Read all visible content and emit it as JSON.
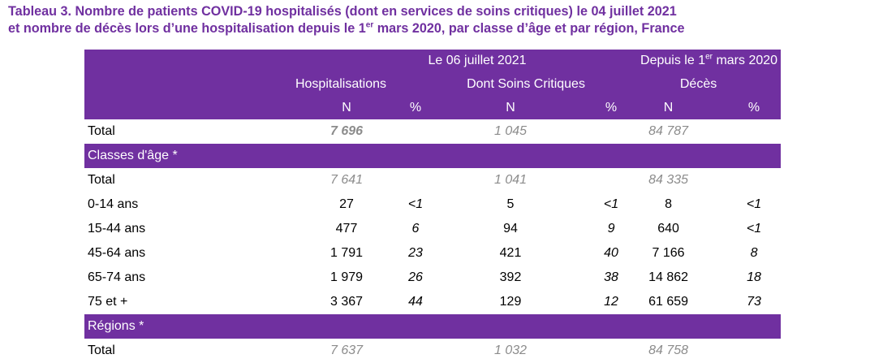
{
  "title": {
    "line1": "Tableau 3. Nombre de patients COVID-19 hospitalisés (dont en services de soins critiques) le 04 juillet 2021",
    "line2_pre": "et nombre de décès lors d’une hospitalisation depuis le 1",
    "line2_sup": "er",
    "line2_post": " mars 2020, par classe d’âge et par région, France"
  },
  "header": {
    "date_label": "Le 06 juillet 2021",
    "since_pre": "Depuis le 1",
    "since_sup": "er",
    "since_post": " mars 2020",
    "hosp": "Hospitalisations",
    "crit": "Dont Soins Critiques",
    "deces": "Décès",
    "n": "N",
    "pct": "%"
  },
  "total_row": {
    "label": "Total",
    "hosp_n": "7 696",
    "crit_n": "1 045",
    "deces_n": "84 787"
  },
  "age_section": "Classes d'âge *",
  "age_total": {
    "label": "Total",
    "hosp_n": "7 641",
    "crit_n": "1 041",
    "deces_n": "84 335"
  },
  "age_rows": [
    {
      "label": "0-14 ans",
      "hosp_n": "27",
      "hosp_p": "<1",
      "crit_n": "5",
      "crit_p": "<1",
      "deces_n": "8",
      "deces_p": "<1"
    },
    {
      "label": "15-44 ans",
      "hosp_n": "477",
      "hosp_p": "6",
      "crit_n": "94",
      "crit_p": "9",
      "deces_n": "640",
      "deces_p": "<1"
    },
    {
      "label": "45-64 ans",
      "hosp_n": "1 791",
      "hosp_p": "23",
      "crit_n": "421",
      "crit_p": "40",
      "deces_n": "7 166",
      "deces_p": "8"
    },
    {
      "label": "65-74 ans",
      "hosp_n": "1 979",
      "hosp_p": "26",
      "crit_n": "392",
      "crit_p": "38",
      "deces_n": "14 862",
      "deces_p": "18"
    },
    {
      "label": "75 et +",
      "hosp_n": "3 367",
      "hosp_p": "44",
      "crit_n": "129",
      "crit_p": "12",
      "deces_n": "61 659",
      "deces_p": "73"
    }
  ],
  "region_section": "Régions *",
  "region_total": {
    "label": "Total",
    "hosp_n": "7 637",
    "crit_n": "1 032",
    "deces_n": "84 758"
  },
  "colors": {
    "accent": "#7030a0",
    "muted_text": "#8c8c8c"
  }
}
